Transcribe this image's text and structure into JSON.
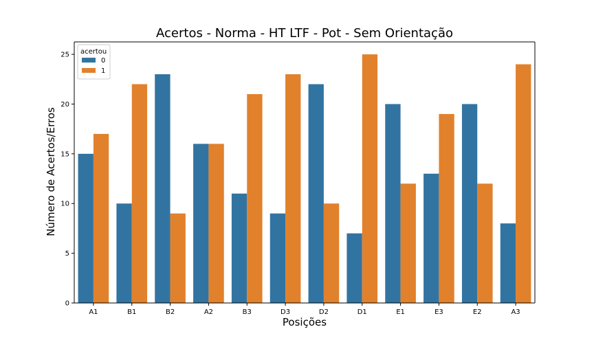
{
  "chart_data": {
    "type": "bar",
    "title": "Acertos - Norma - HT LTF - Pot - Sem Orientação",
    "xlabel": "Posições",
    "ylabel": "Número de Acertos/Erros",
    "categories": [
      "A1",
      "B1",
      "B2",
      "A2",
      "B3",
      "D3",
      "D2",
      "D1",
      "E1",
      "E3",
      "E2",
      "A3"
    ],
    "series": [
      {
        "name": "0",
        "color": "#3274a1",
        "values": [
          15,
          10,
          23,
          16,
          11,
          9,
          22,
          7,
          20,
          13,
          20,
          8
        ]
      },
      {
        "name": "1",
        "color": "#e1812c",
        "values": [
          17,
          22,
          9,
          16,
          21,
          23,
          10,
          25,
          12,
          19,
          12,
          24
        ]
      }
    ],
    "ylim": [
      0,
      26.25
    ],
    "yticks": [
      0,
      5,
      10,
      15,
      20,
      25
    ],
    "grid": false,
    "legend": {
      "title": "acertou",
      "position": "top-left"
    }
  }
}
